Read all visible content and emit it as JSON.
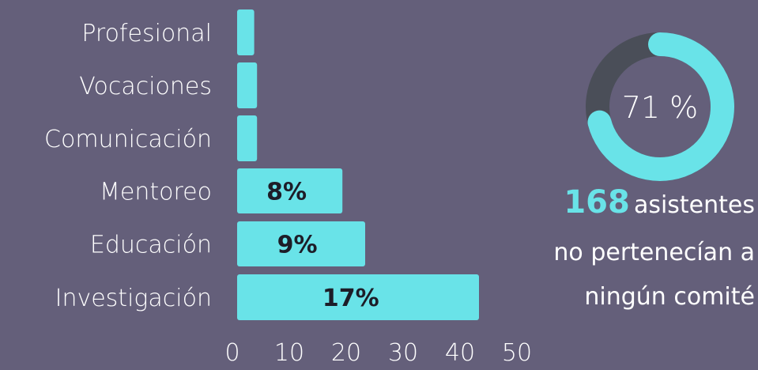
{
  "colors": {
    "background": "#645f7a",
    "bar": "#69e3e8",
    "donut_track": "#4a4e58",
    "bar_label_text": "#1d1d28"
  },
  "chart_data": [
    {
      "type": "bar",
      "orientation": "horizontal",
      "categories": [
        "Profesional",
        "Vocaciones",
        "Comunicación",
        "Mentoreo",
        "Educación",
        "Investigación"
      ],
      "values": [
        3,
        3.5,
        3.5,
        18.5,
        22.5,
        42.5
      ],
      "data_labels": [
        "",
        "",
        "",
        "8%",
        "9%",
        "17%"
      ],
      "xlim": [
        0,
        50
      ],
      "xticks": [
        "0",
        "10",
        "20",
        "30",
        "40",
        "50"
      ],
      "grid": false
    },
    {
      "type": "pie",
      "style": "donut",
      "value": 71,
      "label": "71 %"
    }
  ],
  "stat": {
    "number": "168",
    "line1": "asistentes",
    "line2": "no pertenecían a",
    "line3": "ningún comité"
  }
}
